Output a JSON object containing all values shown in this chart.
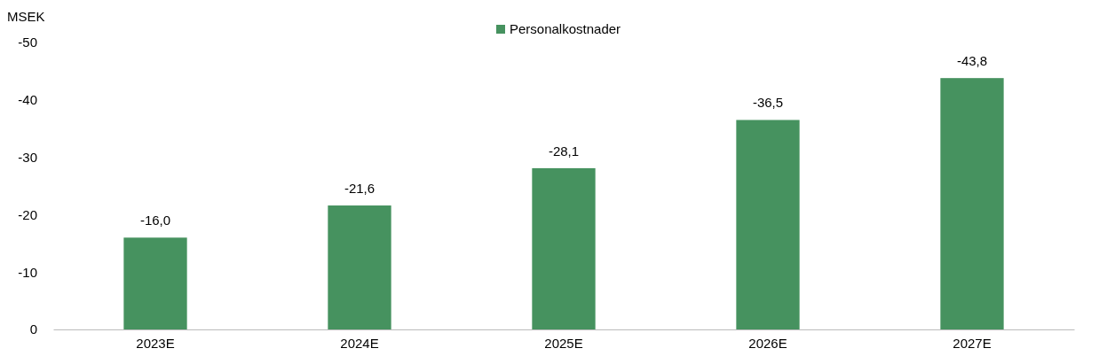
{
  "chart_data": {
    "type": "bar",
    "ylabel": "MSEK",
    "categories": [
      "2023E",
      "2024E",
      "2025E",
      "2026E",
      "2027E"
    ],
    "series": [
      {
        "name": "Personalkostnader",
        "color": "#46925f",
        "values": [
          -16.0,
          -21.6,
          -28.1,
          -36.5,
          -43.8
        ],
        "value_labels": [
          "-16,0",
          "-21,6",
          "-28,1",
          "-36,5",
          "-43,8"
        ]
      }
    ],
    "ylim": [
      0,
      -50
    ],
    "yticks": [
      0,
      -10,
      -20,
      -30,
      -40,
      -50
    ],
    "legend": "top"
  }
}
